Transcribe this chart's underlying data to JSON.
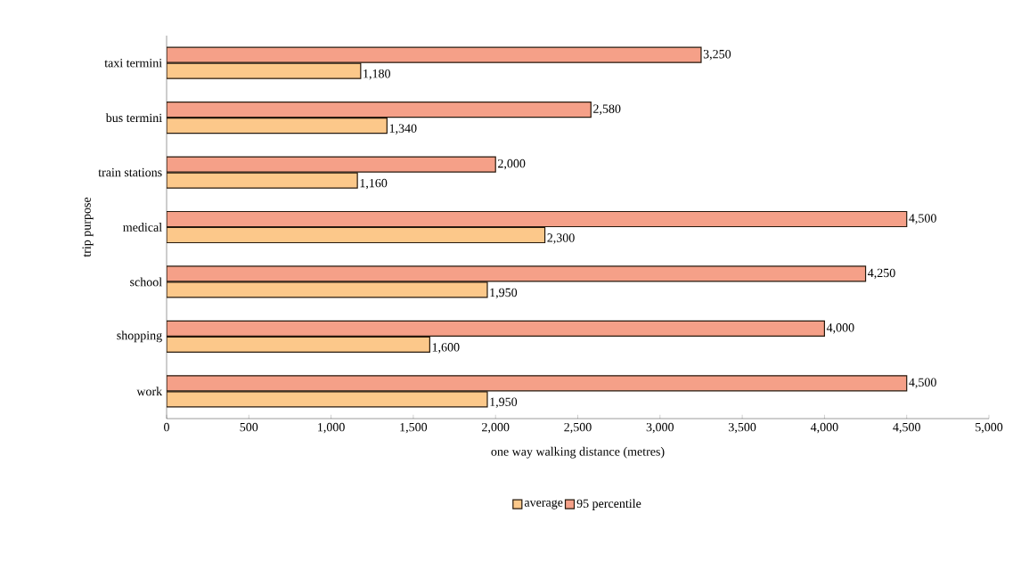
{
  "chart_data": {
    "type": "bar",
    "orientation": "horizontal",
    "xlabel": "one way walking distance (metres)",
    "ylabel": "trip purpose",
    "categories": [
      "taxi termini",
      "bus termini",
      "train stations",
      "medical",
      "school",
      "shopping",
      "work"
    ],
    "series": [
      {
        "name": "average",
        "color": "#fcc88a",
        "values": [
          1180,
          1340,
          1160,
          2300,
          1950,
          1600,
          1950
        ],
        "value_labels": [
          "1,180",
          "1,340",
          "1,160",
          "2,300",
          "1,950",
          "1,600",
          "1,950"
        ]
      },
      {
        "name": "95 percentile",
        "color": "#f5a088",
        "values": [
          3250,
          2580,
          2000,
          4500,
          4250,
          4000,
          4500
        ],
        "value_labels": [
          "3,250",
          "2,580",
          "2,000",
          "4,500",
          "4,250",
          "4,000",
          "4,500"
        ]
      }
    ],
    "xlim": [
      0,
      5000
    ],
    "xticks": [
      0,
      500,
      {
        "value": 1000,
        "label": "1,000"
      },
      {
        "value": 1500,
        "label": "1,500"
      },
      {
        "value": 2000,
        "label": "2,000"
      },
      {
        "value": 2500,
        "label": "2,500"
      },
      {
        "value": 3000,
        "label": "3,000"
      },
      {
        "value": 3500,
        "label": "3,500"
      },
      {
        "value": 4000,
        "label": "4,000"
      },
      {
        "value": 4500,
        "label": "4,500"
      },
      {
        "value": 5000,
        "label": "5,000"
      }
    ],
    "legend": "bottom",
    "grid": false
  }
}
